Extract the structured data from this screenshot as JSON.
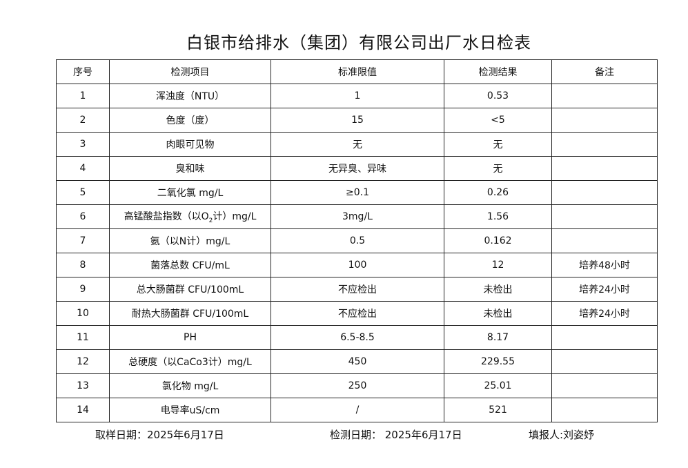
{
  "title": "白银市给排水（集团）有限公司出厂水日检表",
  "headers": [
    "序号",
    "检测项目",
    "标准限值",
    "检测结果",
    "备注"
  ],
  "rows": [
    {
      "no": "1",
      "item": "浑浊度（NTU）",
      "limit": "1",
      "result": "0.53",
      "note": ""
    },
    {
      "no": "2",
      "item": "色度（度）",
      "limit": "15",
      "result": "<5",
      "note": ""
    },
    {
      "no": "3",
      "item": "肉眼可见物",
      "limit": "无",
      "result": "无",
      "note": ""
    },
    {
      "no": "4",
      "item": "臭和味",
      "limit": "无异臭、异味",
      "result": "无",
      "note": ""
    },
    {
      "no": "5",
      "item": "二氧化氯 mg/L",
      "limit": "≥0.1",
      "result": "0.26",
      "note": ""
    },
    {
      "no": "6",
      "item_pre": "高锰酸盐指数（以O",
      "item_sub": "2",
      "item_post": "计）mg/L",
      "limit": "3mg/L",
      "result": "1.56",
      "note": ""
    },
    {
      "no": "7",
      "item": "氨（以N计）mg/L",
      "limit": "0.5",
      "result": "0.162",
      "note": ""
    },
    {
      "no": "8",
      "item": "菌落总数 CFU/mL",
      "limit": "100",
      "result": "12",
      "note": "培养48小时"
    },
    {
      "no": "9",
      "item": "总大肠菌群 CFU/100mL",
      "limit": "不应检出",
      "result": "未检出",
      "note": "培养24小时"
    },
    {
      "no": "10",
      "item": "耐热大肠菌群 CFU/100mL",
      "limit": "不应检出",
      "result": "未检出",
      "note": "培养24小时"
    },
    {
      "no": "11",
      "item": "PH",
      "limit": "6.5-8.5",
      "result": "8.17",
      "note": ""
    },
    {
      "no": "12",
      "item": "总硬度（以CaCo3计）mg/L",
      "limit": "450",
      "result": "229.55",
      "note": ""
    },
    {
      "no": "13",
      "item": "氯化物 mg/L",
      "limit": "250",
      "result": "25.01",
      "note": ""
    },
    {
      "no": "14",
      "item": "电导率uS/cm",
      "limit": "/",
      "result": "521",
      "note": ""
    }
  ],
  "footer": {
    "sampling_date": "取样日期：2025年6月17日",
    "test_date": "检测日期：  2025年6月17日",
    "reporter": "填报人:刘姿妤"
  }
}
